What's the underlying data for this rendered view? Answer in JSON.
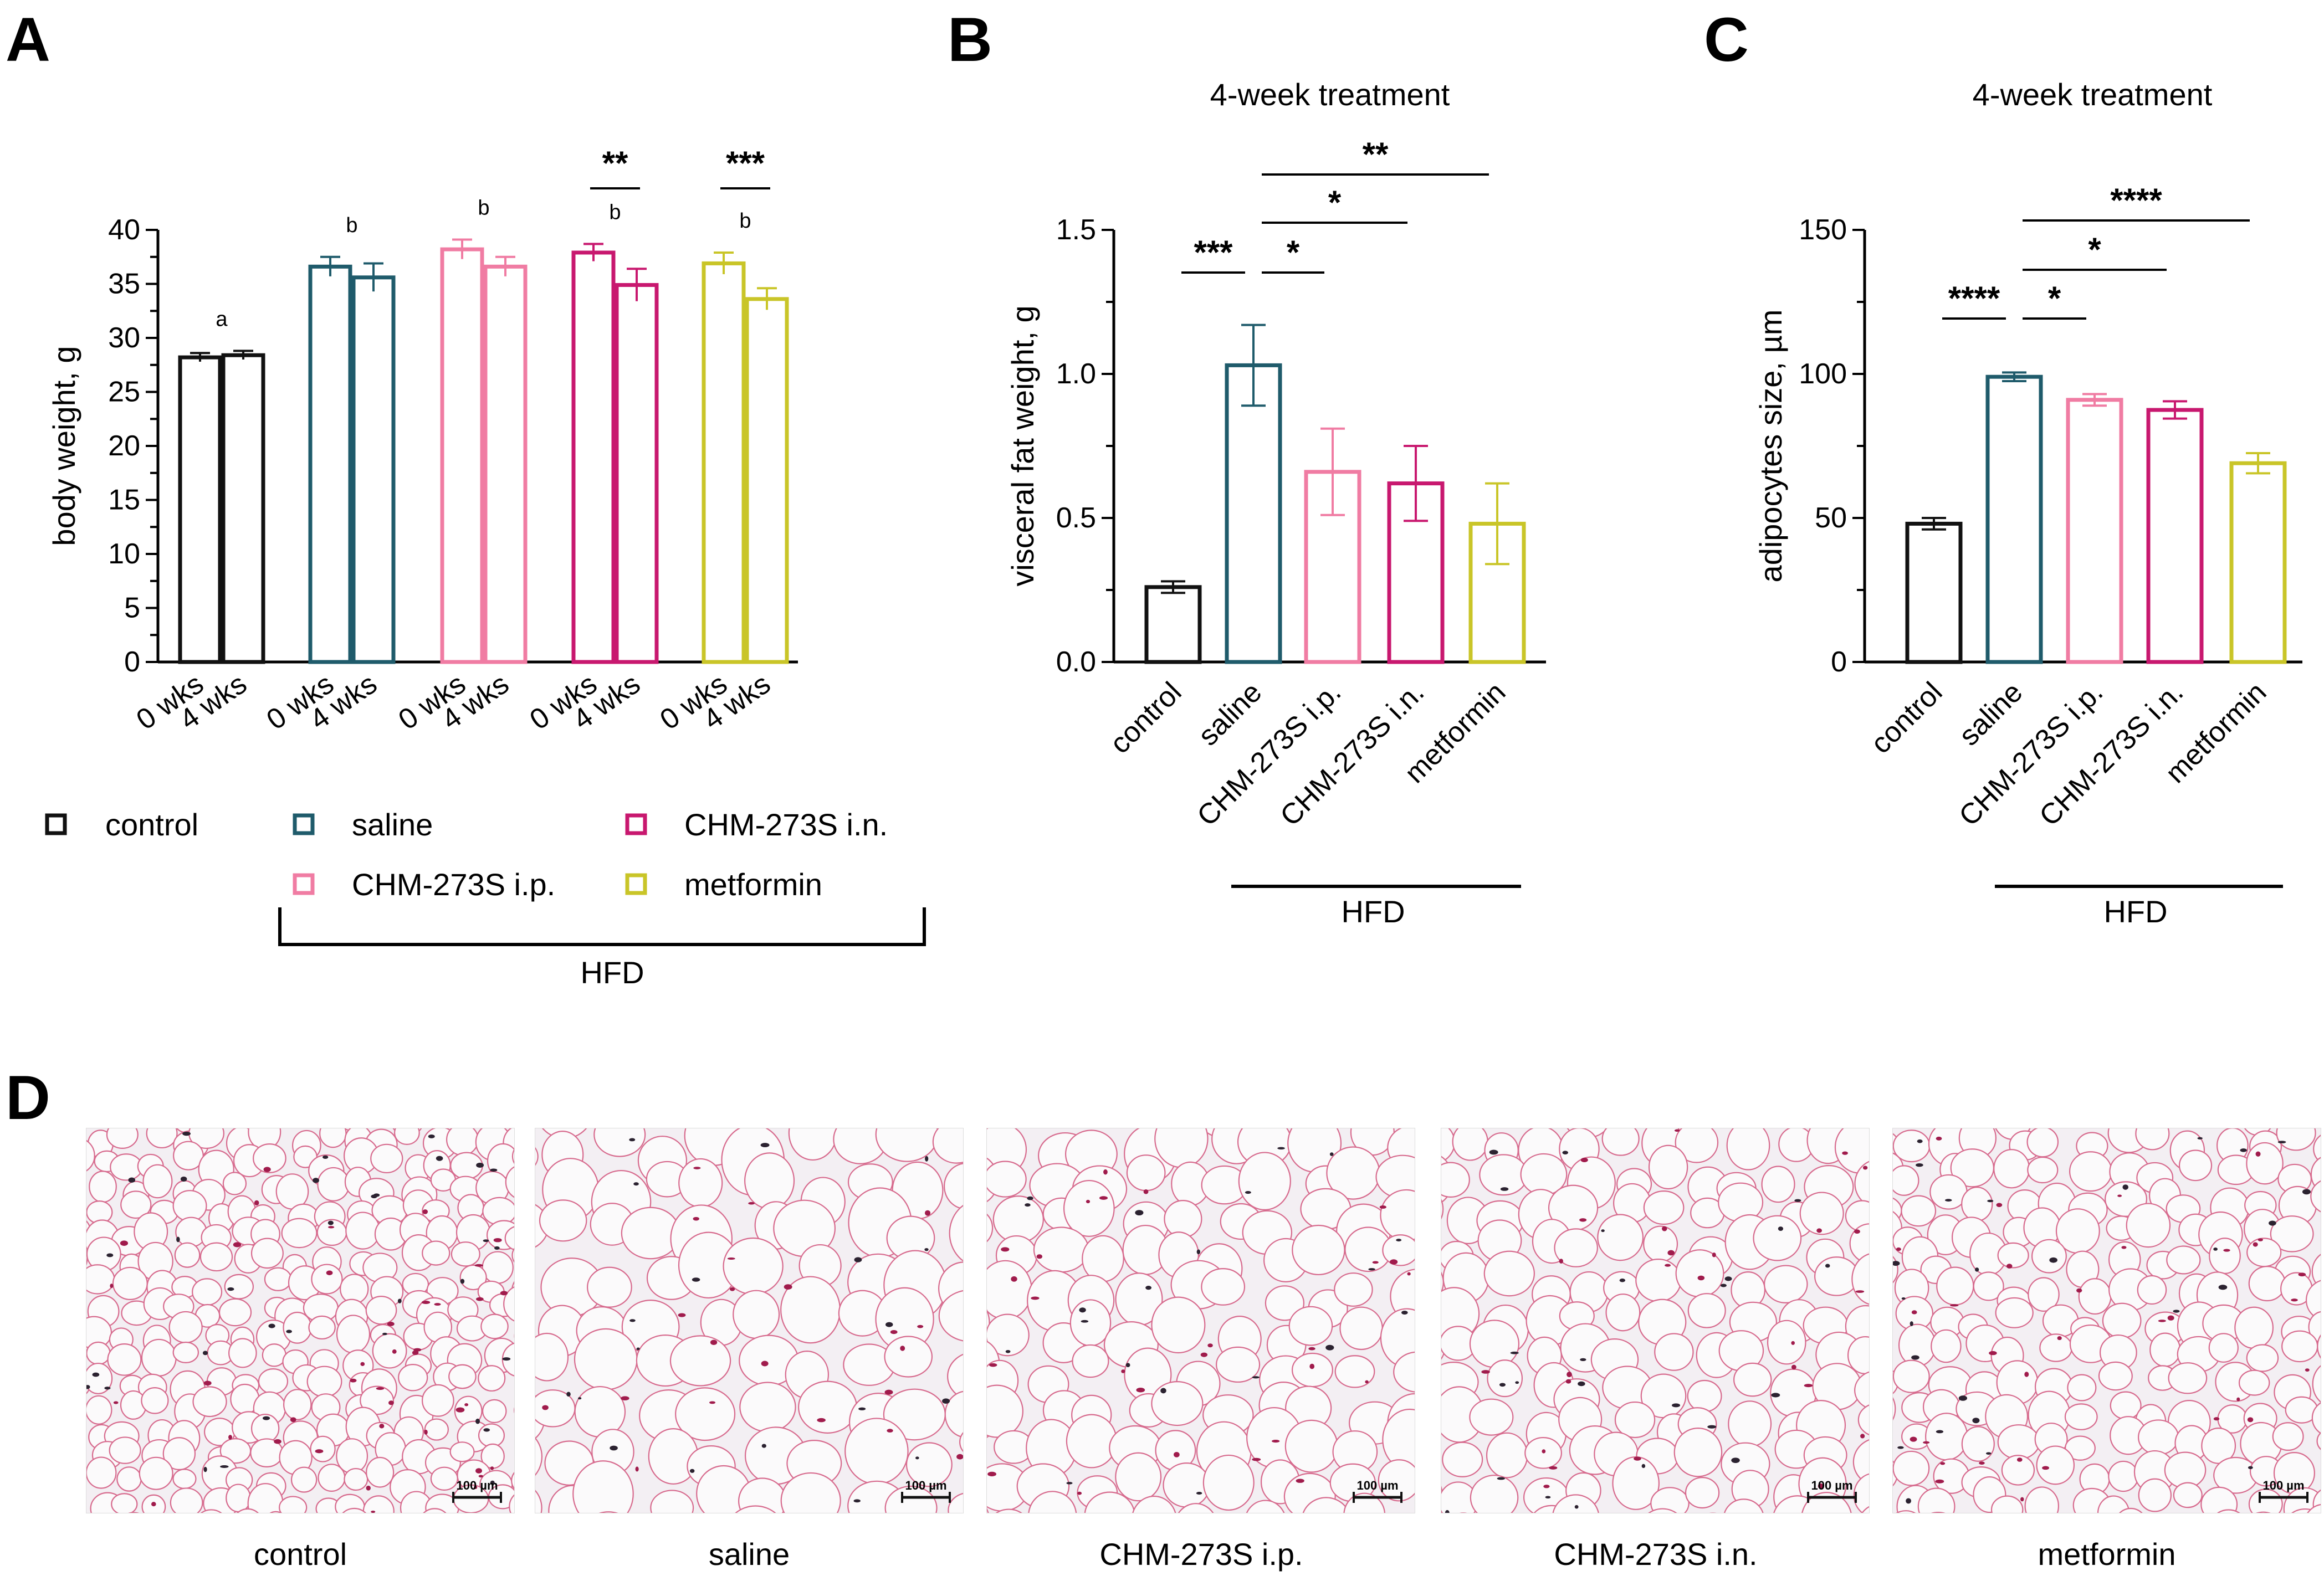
{
  "panels": {
    "A": {
      "letter": "A"
    },
    "B": {
      "letter": "B"
    },
    "C": {
      "letter": "C"
    },
    "D": {
      "letter": "D"
    }
  },
  "colors": {
    "control": "#111111",
    "saline": "#1f5b6b",
    "chm_ip": "#f07ca3",
    "chm_in": "#c8186f",
    "metformin": "#c9c528"
  },
  "legend": {
    "items": [
      {
        "label": "control",
        "color": "#111111"
      },
      {
        "label": "saline",
        "color": "#1f5b6b"
      },
      {
        "label": "CHM-273S i.n.",
        "color": "#c8186f"
      },
      {
        "label": "CHM-273S i.p.",
        "color": "#f07ca3"
      },
      {
        "label": "metformin",
        "color": "#c9c528"
      }
    ],
    "bracket_label": "HFD"
  },
  "chart_data": [
    {
      "id": "A",
      "type": "bar",
      "ylabel": "body weight, g",
      "ylim": [
        0,
        40
      ],
      "yticks": [
        0,
        5,
        10,
        15,
        20,
        25,
        30,
        35,
        40
      ],
      "groups": [
        "control",
        "saline",
        "CHM-273S i.p.",
        "CHM-273S i.n.",
        "metformin"
      ],
      "timepoints": [
        "0 wks",
        "4 wks"
      ],
      "values": [
        [
          28.2,
          28.4
        ],
        [
          36.6,
          35.6
        ],
        [
          38.2,
          36.6
        ],
        [
          37.9,
          34.9
        ],
        [
          36.9,
          33.6
        ]
      ],
      "errors": [
        [
          0.4,
          0.4
        ],
        [
          0.9,
          1.3
        ],
        [
          0.9,
          0.9
        ],
        [
          0.8,
          1.5
        ],
        [
          1.0,
          1.0
        ]
      ],
      "group_letters": [
        "a",
        "b",
        "b",
        "b",
        "b"
      ],
      "significance": [
        {
          "group": "CHM-273S i.n.",
          "label": "**"
        },
        {
          "group": "metformin",
          "label": "***"
        }
      ]
    },
    {
      "id": "B",
      "type": "bar",
      "title": "4-week treatment",
      "ylabel": "visceral fat weight, g",
      "ylim": [
        0,
        1.5
      ],
      "yticks": [
        "0.0",
        "0.5",
        "1.0",
        "1.5"
      ],
      "categories": [
        "control",
        "saline",
        "CHM-273S i.p.",
        "CHM-273S i.n.",
        "metformin"
      ],
      "values": [
        0.26,
        1.03,
        0.66,
        0.62,
        0.48
      ],
      "errors": [
        0.02,
        0.14,
        0.15,
        0.13,
        0.14
      ],
      "bracket_label": "HFD",
      "significance": [
        {
          "from": "control",
          "to": "saline",
          "label": "***"
        },
        {
          "from": "saline",
          "to": "CHM-273S i.p.",
          "label": "*"
        },
        {
          "from": "saline",
          "to": "CHM-273S i.n.",
          "label": "*"
        },
        {
          "from": "saline",
          "to": "metformin",
          "label": "**"
        }
      ]
    },
    {
      "id": "C",
      "type": "bar",
      "title": "4-week treatment",
      "ylabel": "adipocytes size, µm",
      "ylim": [
        0,
        150
      ],
      "yticks": [
        "0",
        "50",
        "100",
        "150"
      ],
      "categories": [
        "control",
        "saline",
        "CHM-273S i.p.",
        "CHM-273S i.n.",
        "metformin"
      ],
      "values": [
        48,
        99,
        91,
        87.5,
        69
      ],
      "errors": [
        2,
        1.5,
        2,
        3,
        3.5
      ],
      "bracket_label": "HFD",
      "significance": [
        {
          "from": "control",
          "to": "saline",
          "label": "****"
        },
        {
          "from": "saline",
          "to": "CHM-273S i.p.",
          "label": "*"
        },
        {
          "from": "saline",
          "to": "CHM-273S i.n.",
          "label": "*"
        },
        {
          "from": "saline",
          "to": "metformin",
          "label": "****"
        }
      ]
    }
  ],
  "micrographs": {
    "scale_bar": "100 µm",
    "items": [
      {
        "caption": "control",
        "density": 1.8
      },
      {
        "caption": "saline",
        "density": 1.0
      },
      {
        "caption": "CHM-273S i.p.",
        "density": 1.15
      },
      {
        "caption": "CHM-273S i.n.",
        "density": 1.25
      },
      {
        "caption": "metformin",
        "density": 1.45
      }
    ]
  }
}
